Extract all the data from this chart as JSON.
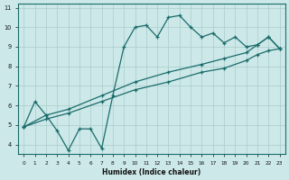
{
  "xlabel": "Humidex (Indice chaleur)",
  "ylabel": "",
  "bg_color": "#cce8e8",
  "line_color": "#1a6b6b",
  "grid_color": "#aacccc",
  "xlim": [
    -0.5,
    23.5
  ],
  "ylim": [
    3.5,
    11.2
  ],
  "xticks": [
    0,
    1,
    2,
    3,
    4,
    5,
    6,
    7,
    8,
    9,
    10,
    11,
    12,
    13,
    14,
    15,
    16,
    17,
    18,
    19,
    20,
    21,
    22,
    23
  ],
  "yticks": [
    4,
    5,
    6,
    7,
    8,
    9,
    10,
    11
  ],
  "line1_x": [
    0,
    1,
    2,
    3,
    4,
    5,
    6,
    7,
    8,
    9,
    10,
    11,
    12,
    13,
    14,
    15,
    16,
    17,
    18,
    19,
    20,
    21,
    22,
    23
  ],
  "line1_y": [
    4.9,
    6.2,
    5.5,
    4.7,
    3.7,
    4.8,
    4.8,
    3.8,
    6.5,
    9.0,
    10.0,
    10.1,
    9.5,
    10.5,
    10.6,
    10.0,
    9.5,
    9.7,
    9.2,
    9.5,
    9.0,
    9.1,
    9.5,
    8.9
  ],
  "line2_x": [
    0,
    2,
    4,
    7,
    10,
    13,
    16,
    18,
    20,
    21,
    22,
    23
  ],
  "line2_y": [
    4.9,
    5.5,
    5.8,
    6.5,
    7.2,
    7.7,
    8.1,
    8.4,
    8.7,
    9.1,
    9.5,
    8.9
  ],
  "line3_x": [
    0,
    2,
    4,
    7,
    10,
    13,
    16,
    18,
    20,
    21,
    22,
    23
  ],
  "line3_y": [
    4.9,
    5.3,
    5.6,
    6.2,
    6.8,
    7.2,
    7.7,
    7.9,
    8.3,
    8.6,
    8.8,
    8.9
  ]
}
